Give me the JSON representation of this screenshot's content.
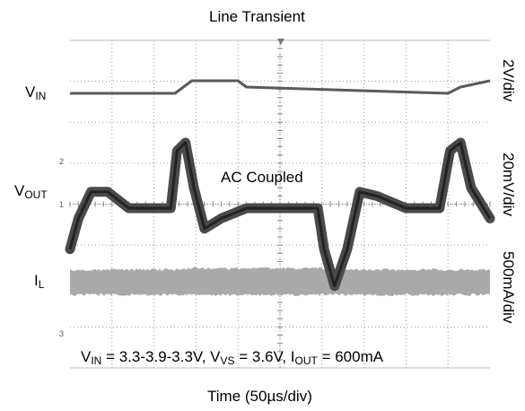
{
  "chart_data": {
    "type": "line",
    "title": "Line Transient",
    "xlabel": "Time (50µs/div)",
    "time_per_div_us": 50,
    "divisions": {
      "x": 10,
      "y": 8
    },
    "grid": true,
    "series": [
      {
        "name": "V_IN",
        "label_main": "V",
        "label_sub": "IN",
        "scale": "2V/div",
        "x_div": [
          0,
          2.5,
          2.7,
          2.9,
          3.9,
          4.0,
          4.2,
          9.0,
          9.3,
          10
        ],
        "values": [
          3.3,
          3.3,
          3.6,
          3.9,
          3.9,
          3.9,
          3.6,
          3.3,
          3.6,
          3.9
        ]
      },
      {
        "name": "V_OUT",
        "label_main": "V",
        "label_sub": "OUT",
        "scale": "20mV/div",
        "annotation": "AC Coupled",
        "x_div": [
          0,
          0.2,
          0.5,
          0.9,
          1.4,
          2.4,
          2.55,
          2.75,
          2.95,
          3.2,
          3.6,
          4.2,
          5.0,
          5.9,
          6.05,
          6.3,
          6.6,
          6.9,
          7.3,
          8.0,
          8.8,
          9.05,
          9.3,
          9.55,
          10
        ],
        "values": [
          -20,
          -5,
          8,
          8,
          0,
          0,
          28,
          32,
          10,
          -10,
          -5,
          0,
          0,
          0,
          -20,
          -38,
          -20,
          8,
          6,
          0,
          0,
          28,
          32,
          10,
          -5
        ]
      },
      {
        "name": "I_L",
        "label_main": "I",
        "label_sub": "L",
        "scale": "500mA/div",
        "x_div": [
          0,
          10
        ],
        "values": [
          600,
          600
        ]
      }
    ],
    "markers": [
      "2",
      "1",
      "3"
    ],
    "conditions": {
      "vin_main": "V",
      "vin_sub": "IN",
      "vin_val": " = 3.3-3.9-3.3V, ",
      "vvs_main": "V",
      "vvs_sub": "VS",
      "vvs_val": " = 3.6V, ",
      "iout_main": "I",
      "iout_sub": "OUT",
      "iout_val": " = 600mA"
    }
  }
}
